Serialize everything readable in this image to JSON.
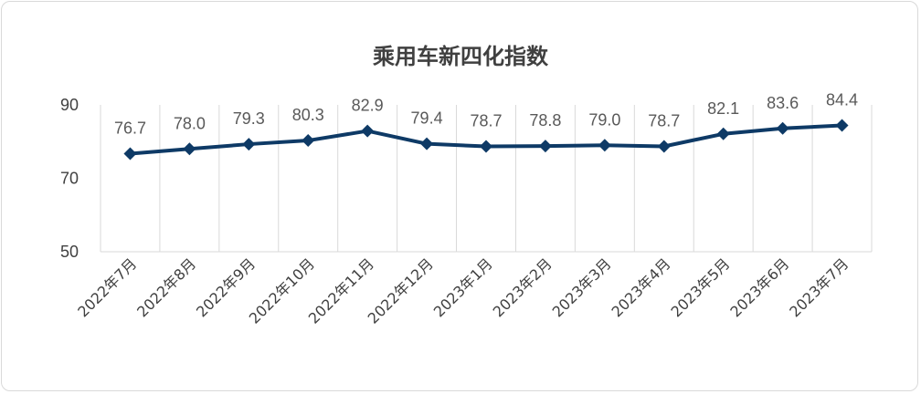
{
  "chart_data": {
    "type": "line",
    "title": "乘用车新四化指数",
    "categories": [
      "2022年7月",
      "2022年8月",
      "2022年9月",
      "2022年10月",
      "2022年11月",
      "2022年12月",
      "2023年1月",
      "2023年2月",
      "2023年3月",
      "2023年4月",
      "2023年5月",
      "2023年6月",
      "2023年7月"
    ],
    "series": [
      {
        "values": [
          76.7,
          78.0,
          79.3,
          80.3,
          82.9,
          79.4,
          78.7,
          78.8,
          79.0,
          78.7,
          82.1,
          83.6,
          84.4
        ]
      }
    ],
    "data_labels": [
      "76.7",
      "78.0",
      "79.3",
      "80.3",
      "82.9",
      "79.4",
      "78.7",
      "78.8",
      "79.0",
      "78.7",
      "82.1",
      "83.6",
      "84.4"
    ],
    "y_ticks": [
      "50",
      "70",
      "90"
    ],
    "ylim": [
      50,
      90
    ],
    "grid": "vertical",
    "line_color": "#0e3a66",
    "grid_color": "#d9d9d9"
  }
}
